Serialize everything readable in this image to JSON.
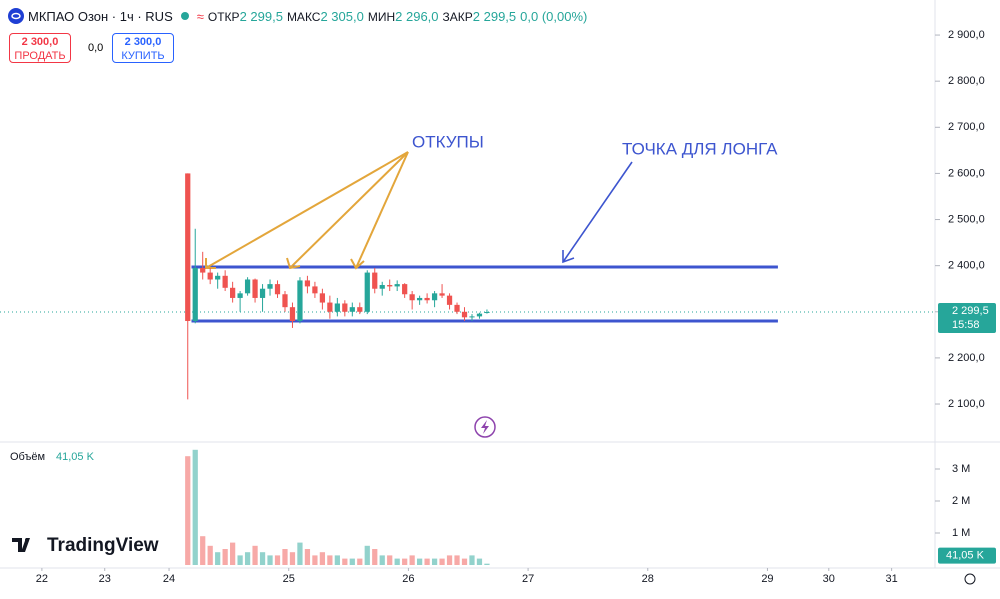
{
  "header": {
    "symbol": "МКПАО Озон · 1ч · RUS",
    "ohlc": [
      {
        "label": "ОТКР",
        "value": "2 299,5"
      },
      {
        "label": "МАКС",
        "value": "2 305,0"
      },
      {
        "label": "МИН",
        "value": "2 296,0"
      },
      {
        "label": "ЗАКР",
        "value": "2 299,5"
      }
    ],
    "change": "0,0 (0,00%)"
  },
  "trade": {
    "sell_price": "2 300,0",
    "sell_label": "ПРОДАТЬ",
    "spread": "0,0",
    "buy_price": "2 300,0",
    "buy_label": "КУПИТЬ"
  },
  "logo": "TradingView",
  "chart_data": {
    "type": "candlestick",
    "x": [
      2.5,
      3.5,
      4.5,
      5.5,
      6.5,
      7.5,
      8.5,
      9.5,
      10.5,
      11.5,
      12.5,
      13.5,
      14.5,
      15.5,
      16.5,
      17.5,
      18.5,
      19.5,
      20.5,
      21.5,
      22.5,
      23.5,
      24.5,
      25.5,
      26.5,
      27.5,
      28.5,
      29.5,
      30.5,
      31.5,
      32.5,
      33.5,
      34.5,
      35.5,
      36.5,
      37.5,
      38.5,
      39.5,
      40.5,
      41.5,
      42.5
    ],
    "open": [
      2600,
      2280,
      2395,
      2385,
      2370,
      2378,
      2352,
      2330,
      2340,
      2370,
      2330,
      2350,
      2360,
      2338,
      2310,
      2280,
      2368,
      2355,
      2340,
      2320,
      2300,
      2318,
      2300,
      2310,
      2300,
      2385,
      2350,
      2358,
      2355,
      2360,
      2338,
      2325,
      2330,
      2325,
      2340,
      2335,
      2315,
      2300,
      2288,
      2290,
      2299.5
    ],
    "high": [
      2600,
      2480,
      2430,
      2395,
      2385,
      2390,
      2365,
      2345,
      2375,
      2372,
      2360,
      2370,
      2368,
      2345,
      2320,
      2375,
      2378,
      2365,
      2350,
      2335,
      2330,
      2325,
      2320,
      2320,
      2390,
      2395,
      2365,
      2370,
      2368,
      2362,
      2345,
      2335,
      2340,
      2345,
      2360,
      2340,
      2320,
      2310,
      2295,
      2298,
      2305
    ],
    "low": [
      2110,
      2275,
      2370,
      2360,
      2350,
      2345,
      2320,
      2300,
      2335,
      2320,
      2300,
      2335,
      2330,
      2300,
      2265,
      2275,
      2340,
      2330,
      2305,
      2285,
      2290,
      2290,
      2290,
      2295,
      2295,
      2340,
      2335,
      2345,
      2345,
      2330,
      2305,
      2315,
      2318,
      2310,
      2330,
      2305,
      2295,
      2280,
      2280,
      2285,
      2296
    ],
    "close": [
      2280,
      2395,
      2385,
      2370,
      2378,
      2352,
      2330,
      2340,
      2370,
      2330,
      2350,
      2360,
      2338,
      2310,
      2280,
      2368,
      2355,
      2340,
      2320,
      2300,
      2318,
      2300,
      2310,
      2300,
      2385,
      2350,
      2358,
      2355,
      2360,
      2338,
      2325,
      2330,
      2325,
      2340,
      2335,
      2315,
      2300,
      2288,
      2290,
      2296,
      2299.5
    ],
    "up_color": "#26a69a",
    "down_color": "#ef5350",
    "xlim": [
      -22.6,
      102.4
    ],
    "xticks": [
      {
        "value": -17,
        "label": "22"
      },
      {
        "value": -8.6,
        "label": "23"
      },
      {
        "value": 0,
        "label": "24"
      },
      {
        "value": 16,
        "label": "25"
      },
      {
        "value": 32,
        "label": "26"
      },
      {
        "value": 48,
        "label": "27"
      },
      {
        "value": 64,
        "label": "28"
      },
      {
        "value": 80,
        "label": "29"
      },
      {
        "value": 88.2,
        "label": "30"
      },
      {
        "value": 96.6,
        "label": "31"
      }
    ],
    "ylim": [
      2022,
      2976
    ],
    "yticks": [
      {
        "value": 2100,
        "label": "2 100,0"
      },
      {
        "value": 2200,
        "label": "2 200,0"
      },
      {
        "value": 2300,
        "label": "2 300,0"
      },
      {
        "value": 2400,
        "label": "2 400,0"
      },
      {
        "value": 2500,
        "label": "2 500,0"
      },
      {
        "value": 2600,
        "label": "2 600,0"
      },
      {
        "value": 2700,
        "label": "2 700,0"
      },
      {
        "value": 2800,
        "label": "2 800,0"
      },
      {
        "value": 2900,
        "label": "2 900,0"
      }
    ],
    "last_price": 2299.5,
    "last_price_label": "2 299,5",
    "countdown": "15:58",
    "level_lines": [
      {
        "price": 2397,
        "x": [
          3,
          81.4
        ],
        "color": "#3d55cf"
      },
      {
        "price": 2280,
        "x": [
          3,
          81.4
        ],
        "color": "#3d55cf"
      }
    ],
    "annotations": [
      "ОТКУПЫ",
      "ТОЧКА ДЛЯ ЛОНГА"
    ],
    "volume": {
      "title": "Объём",
      "last_value": 0.04105,
      "last_value_label": "41,05 K",
      "values": [
        3.4,
        3.6,
        0.9,
        0.6,
        0.4,
        0.5,
        0.7,
        0.3,
        0.4,
        0.6,
        0.4,
        0.3,
        0.3,
        0.5,
        0.4,
        0.7,
        0.5,
        0.3,
        0.4,
        0.3,
        0.3,
        0.2,
        0.2,
        0.2,
        0.6,
        0.5,
        0.3,
        0.3,
        0.2,
        0.2,
        0.3,
        0.2,
        0.2,
        0.2,
        0.2,
        0.3,
        0.3,
        0.2,
        0.3,
        0.2,
        0.04105
      ],
      "ylim": [
        0,
        3.75
      ],
      "yticks": [
        {
          "value": 1,
          "label": "1 M"
        },
        {
          "value": 2,
          "label": "2 M"
        },
        {
          "value": 3,
          "label": "3 M"
        }
      ]
    }
  }
}
